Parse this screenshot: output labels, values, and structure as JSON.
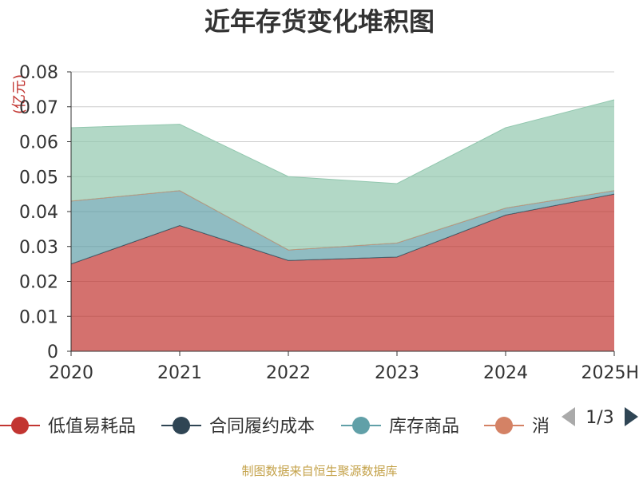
{
  "chart_data": {
    "type": "area",
    "stacked": true,
    "title": "近年存货变化堆积图",
    "ylabel": "(亿元)",
    "categories": [
      "2020",
      "2021",
      "2022",
      "2023",
      "2024",
      "2025H"
    ],
    "ylim": [
      0,
      0.08
    ],
    "yticks": [
      "0",
      "0.01",
      "0.02",
      "0.03",
      "0.04",
      "0.05",
      "0.06",
      "0.07",
      "0.08"
    ],
    "grid": true,
    "legend_placement": "bottom",
    "series": [
      {
        "name": "低值易耗品",
        "color": "#c23531",
        "values": [
          0.025,
          0.036,
          0.026,
          0.027,
          0.039,
          0.045
        ]
      },
      {
        "name": "合同履约成本",
        "color": "#2f4554",
        "values": [
          0,
          0,
          0,
          0,
          0,
          0
        ]
      },
      {
        "name": "库存商品",
        "color": "#61a0a8",
        "values": [
          0.018,
          0.01,
          0.003,
          0.004,
          0.002,
          0.001
        ]
      },
      {
        "name": "消",
        "color": "#d48265",
        "values": [
          0,
          0,
          0,
          0,
          0,
          0
        ]
      },
      {
        "color": "#91c7ae",
        "values": [
          0.021,
          0.019,
          0.021,
          0.017,
          0.023,
          0.026
        ]
      }
    ]
  },
  "legend": {
    "items": [
      {
        "label": "低值易耗品",
        "color": "#c23531"
      },
      {
        "label": "合同履约成本",
        "color": "#2f4554"
      },
      {
        "label": "库存商品",
        "color": "#61a0a8"
      },
      {
        "label": "消",
        "color": "#d48265"
      }
    ],
    "page_indicator": "1/3"
  },
  "source": "制图数据来自恒生聚源数据库",
  "colors": {
    "axis": "#333333",
    "grid": "#cccccc",
    "source": "#c4a24a",
    "pager_active": "#2f4554",
    "pager_inactive": "#aaaaaa"
  }
}
